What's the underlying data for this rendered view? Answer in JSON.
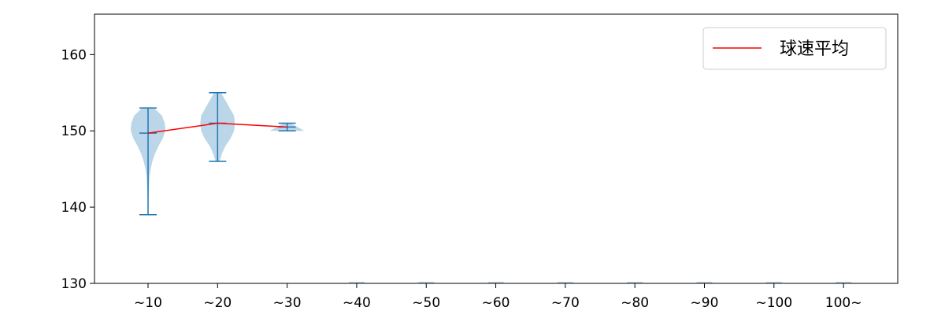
{
  "chart_data": {
    "type": "violin",
    "title": "",
    "xlabel": "",
    "ylabel": "",
    "categories": [
      "~10",
      "~20",
      "~30",
      "~40",
      "~50",
      "~60",
      "~70",
      "~80",
      "~90",
      "~100",
      "100~"
    ],
    "ylim": [
      130,
      165.3
    ],
    "yticks": [
      130,
      140,
      150,
      160
    ],
    "grid": false,
    "legend": {
      "position": "top-right",
      "entries": [
        {
          "label": "球速平均",
          "color": "#ff0000"
        }
      ]
    },
    "colors": {
      "violin_fill": "#1f77b4",
      "violin_alpha": 0.3,
      "stats_line": "#1f77b4",
      "mean_line": "#ff0000"
    },
    "violins": [
      {
        "category": "~10",
        "min": 139,
        "max": 153,
        "mean": 149.7,
        "density": [
          [
            139,
            0.01
          ],
          [
            140,
            0.02
          ],
          [
            142,
            0.04
          ],
          [
            144,
            0.08
          ],
          [
            145,
            0.15
          ],
          [
            146,
            0.25
          ],
          [
            147,
            0.4
          ],
          [
            148,
            0.6
          ],
          [
            149,
            0.85
          ],
          [
            150,
            1.0
          ],
          [
            151,
            0.97
          ],
          [
            152,
            0.8
          ],
          [
            153,
            0.35
          ]
        ]
      },
      {
        "category": "~20",
        "min": 146,
        "max": 155,
        "mean": 151.0,
        "density": [
          [
            146,
            0.12
          ],
          [
            147,
            0.25
          ],
          [
            148,
            0.45
          ],
          [
            149,
            0.75
          ],
          [
            150,
            0.95
          ],
          [
            151,
            1.0
          ],
          [
            152,
            0.95
          ],
          [
            153,
            0.7
          ],
          [
            154,
            0.45
          ],
          [
            155,
            0.2
          ]
        ]
      },
      {
        "category": "~30",
        "min": 150,
        "max": 151,
        "mean": 150.5,
        "density": [
          [
            150,
            1.0
          ],
          [
            150.5,
            0.6
          ],
          [
            151,
            0.2
          ]
        ]
      }
    ],
    "mean_line": {
      "name": "球速平均",
      "x": [
        "~10",
        "~20",
        "~30"
      ],
      "y": [
        149.7,
        151.0,
        150.5
      ]
    }
  }
}
